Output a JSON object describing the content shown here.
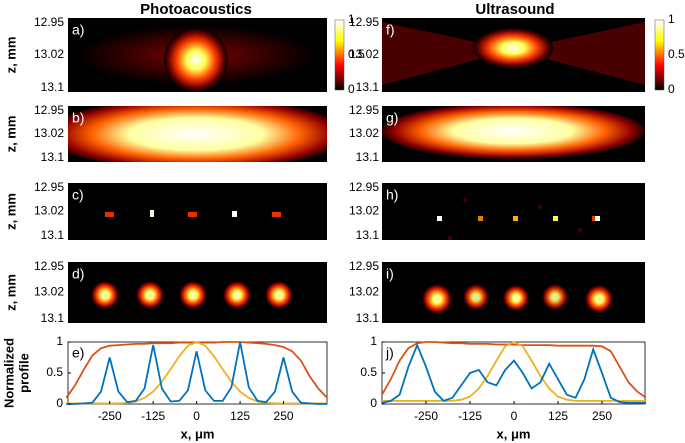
{
  "figure": {
    "column_titles": [
      "Photoacoustics",
      "Ultrasound"
    ],
    "z_label": "z, mm",
    "z_ticks": [
      12.95,
      13.02,
      13.1
    ],
    "panels_left": [
      "a)",
      "b)",
      "c)",
      "d)"
    ],
    "panels_right": [
      "f)",
      "g)",
      "h)",
      "i)"
    ],
    "colorbar_ticks": [
      1,
      0.5,
      0
    ]
  },
  "chart_data": [
    {
      "type": "line",
      "panel": "e)",
      "y_label": [
        "Normalized",
        "profile"
      ],
      "x_label": "x, μm",
      "x": [
        -375,
        -350,
        -325,
        -300,
        -275,
        -250,
        -225,
        -200,
        -175,
        -150,
        -125,
        -100,
        -75,
        -50,
        -25,
        0,
        25,
        50,
        75,
        100,
        125,
        150,
        175,
        200,
        225,
        250,
        275,
        300,
        325,
        350,
        375
      ],
      "xlim": [
        -370,
        375
      ],
      "ylim": [
        0,
        1
      ],
      "xticks": [
        -250,
        -125,
        0,
        125,
        250
      ],
      "yticks": [
        0,
        0.5,
        1
      ],
      "series": [
        {
          "color": "#D95319",
          "values": [
            0.1,
            0.3,
            0.55,
            0.78,
            0.9,
            0.94,
            0.95,
            0.96,
            0.97,
            0.97,
            0.98,
            0.98,
            0.98,
            0.99,
            0.99,
            0.99,
            0.99,
            0.99,
            1.0,
            1.0,
            1.0,
            0.99,
            0.98,
            0.97,
            0.95,
            0.92,
            0.85,
            0.7,
            0.45,
            0.25,
            0.1
          ]
        },
        {
          "color": "#EDB120",
          "values": [
            0.01,
            0.01,
            0.01,
            0.01,
            0.01,
            0.01,
            0.01,
            0.02,
            0.04,
            0.1,
            0.2,
            0.36,
            0.56,
            0.77,
            0.94,
            1.0,
            0.94,
            0.77,
            0.56,
            0.36,
            0.2,
            0.1,
            0.04,
            0.02,
            0.01,
            0.01,
            0.01,
            0.01,
            0.01,
            0.01,
            0.01
          ]
        },
        {
          "color": "#0072BD",
          "values": [
            0,
            0,
            0.01,
            0.02,
            0.2,
            0.75,
            0.2,
            0.03,
            0.05,
            0.25,
            0.95,
            0.25,
            0.04,
            0.05,
            0.22,
            0.85,
            0.22,
            0.05,
            0.05,
            0.27,
            1.0,
            0.27,
            0.05,
            0.03,
            0.2,
            0.75,
            0.2,
            0.02,
            0.01,
            0,
            0
          ]
        }
      ]
    },
    {
      "type": "line",
      "panel": "j)",
      "x_label": "x, μm",
      "x": [
        -375,
        -350,
        -325,
        -300,
        -275,
        -250,
        -225,
        -200,
        -175,
        -150,
        -125,
        -100,
        -75,
        -50,
        -25,
        0,
        25,
        50,
        75,
        100,
        125,
        150,
        175,
        200,
        225,
        250,
        275,
        300,
        325,
        350,
        375
      ],
      "xlim": [
        -375,
        372
      ],
      "ylim": [
        0,
        1
      ],
      "xticks": [
        -250,
        -125,
        0,
        125,
        250
      ],
      "yticks": [
        0,
        0.5,
        1
      ],
      "series": [
        {
          "color": "#D95319",
          "values": [
            0.15,
            0.4,
            0.7,
            0.9,
            0.98,
            1.0,
            1.0,
            0.99,
            0.98,
            0.98,
            0.97,
            0.97,
            0.97,
            0.96,
            0.96,
            0.96,
            0.95,
            0.95,
            0.95,
            0.95,
            0.94,
            0.94,
            0.94,
            0.94,
            0.94,
            0.93,
            0.85,
            0.6,
            0.35,
            0.2,
            0.1
          ]
        },
        {
          "color": "#EDB120",
          "values": [
            0.05,
            0.05,
            0.05,
            0.05,
            0.05,
            0.05,
            0.05,
            0.05,
            0.05,
            0.07,
            0.12,
            0.25,
            0.45,
            0.7,
            0.93,
            1.0,
            0.93,
            0.7,
            0.45,
            0.25,
            0.12,
            0.07,
            0.05,
            0.05,
            0.05,
            0.05,
            0.05,
            0.05,
            0.05,
            0.05,
            0.05
          ]
        },
        {
          "color": "#0072BD",
          "values": [
            0.02,
            0.05,
            0.15,
            0.6,
            0.95,
            0.6,
            0.2,
            0.05,
            0.1,
            0.3,
            0.5,
            0.55,
            0.35,
            0.3,
            0.55,
            0.7,
            0.5,
            0.25,
            0.35,
            0.65,
            0.4,
            0.15,
            0.1,
            0.4,
            0.88,
            0.5,
            0.1,
            0.03,
            0.02,
            0.02,
            0.02
          ]
        }
      ]
    }
  ]
}
